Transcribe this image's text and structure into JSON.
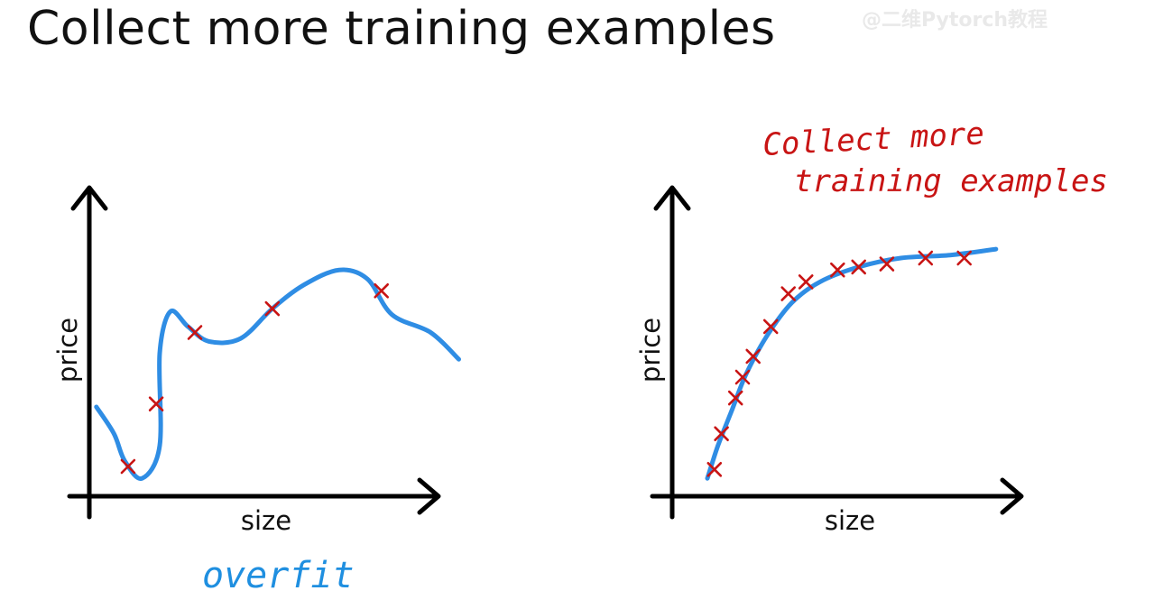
{
  "title": "Collect more training examples",
  "watermark": "@二维Pytorch教程",
  "colors": {
    "curve": "#2f8de4",
    "marker": "#c81414",
    "axis": "#000000",
    "annotation_red": "#c81414",
    "annotation_blue": "#1f8fe0"
  },
  "left_plot": {
    "xlabel": "size",
    "ylabel": "price",
    "annotation": "overfit"
  },
  "right_plot": {
    "xlabel": "size",
    "ylabel": "price",
    "annotation_line1": "Collect more",
    "annotation_line2": "training examples"
  },
  "chart_data": [
    {
      "type": "scatter",
      "xlabel": "size",
      "ylabel": "price",
      "markers": "x",
      "points": [
        {
          "x": 0.11,
          "y": 0.1
        },
        {
          "x": 0.19,
          "y": 0.31
        },
        {
          "x": 0.3,
          "y": 0.55
        },
        {
          "x": 0.52,
          "y": 0.63
        },
        {
          "x": 0.83,
          "y": 0.69
        }
      ],
      "fit": {
        "kind": "high-order polynomial (overfit)",
        "points": [
          {
            "x": 0.02,
            "y": 0.3
          },
          {
            "x": 0.07,
            "y": 0.21
          },
          {
            "x": 0.1,
            "y": 0.12
          },
          {
            "x": 0.15,
            "y": 0.06
          },
          {
            "x": 0.2,
            "y": 0.17
          },
          {
            "x": 0.2,
            "y": 0.48
          },
          {
            "x": 0.23,
            "y": 0.62
          },
          {
            "x": 0.28,
            "y": 0.57
          },
          {
            "x": 0.34,
            "y": 0.52
          },
          {
            "x": 0.43,
            "y": 0.53
          },
          {
            "x": 0.52,
            "y": 0.63
          },
          {
            "x": 0.61,
            "y": 0.71
          },
          {
            "x": 0.71,
            "y": 0.76
          },
          {
            "x": 0.79,
            "y": 0.73
          },
          {
            "x": 0.86,
            "y": 0.61
          },
          {
            "x": 0.97,
            "y": 0.55
          },
          {
            "x": 1.05,
            "y": 0.46
          }
        ]
      }
    },
    {
      "type": "scatter",
      "xlabel": "size",
      "ylabel": "price",
      "markers": "x",
      "points": [
        {
          "x": 0.12,
          "y": 0.09
        },
        {
          "x": 0.14,
          "y": 0.21
        },
        {
          "x": 0.18,
          "y": 0.33
        },
        {
          "x": 0.2,
          "y": 0.4
        },
        {
          "x": 0.23,
          "y": 0.47
        },
        {
          "x": 0.28,
          "y": 0.57
        },
        {
          "x": 0.33,
          "y": 0.68
        },
        {
          "x": 0.38,
          "y": 0.72
        },
        {
          "x": 0.47,
          "y": 0.76
        },
        {
          "x": 0.53,
          "y": 0.77
        },
        {
          "x": 0.61,
          "y": 0.78
        },
        {
          "x": 0.72,
          "y": 0.8
        },
        {
          "x": 0.83,
          "y": 0.8
        }
      ],
      "fit": {
        "kind": "smooth concave curve",
        "points": [
          {
            "x": 0.1,
            "y": 0.06
          },
          {
            "x": 0.13,
            "y": 0.17
          },
          {
            "x": 0.17,
            "y": 0.29
          },
          {
            "x": 0.21,
            "y": 0.41
          },
          {
            "x": 0.27,
            "y": 0.54
          },
          {
            "x": 0.34,
            "y": 0.65
          },
          {
            "x": 0.42,
            "y": 0.72
          },
          {
            "x": 0.53,
            "y": 0.77
          },
          {
            "x": 0.65,
            "y": 0.8
          },
          {
            "x": 0.79,
            "y": 0.81
          },
          {
            "x": 0.92,
            "y": 0.83
          }
        ]
      }
    }
  ]
}
